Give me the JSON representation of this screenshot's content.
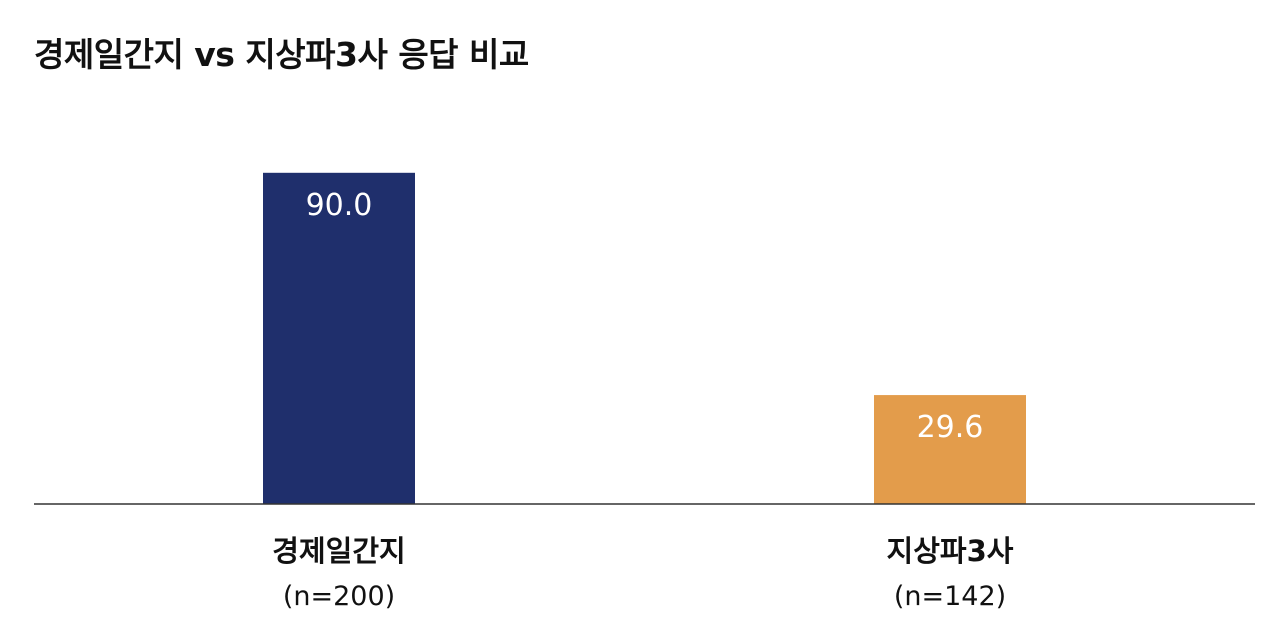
{
  "chart_data": {
    "type": "bar",
    "title": "경제일간지 vs 지상파3사 응답 비교",
    "categories": [
      "경제일간지",
      "지상파3사"
    ],
    "category_n": [
      "(n=200)",
      "(n=142)"
    ],
    "values": [
      90.0,
      29.6
    ],
    "value_labels": [
      "90.0",
      "29.6"
    ],
    "colors": [
      "#1f2f6c",
      "#e39c4b"
    ],
    "ylim": [
      0,
      100
    ],
    "xlabel": "",
    "ylabel": "",
    "grid": false
  }
}
